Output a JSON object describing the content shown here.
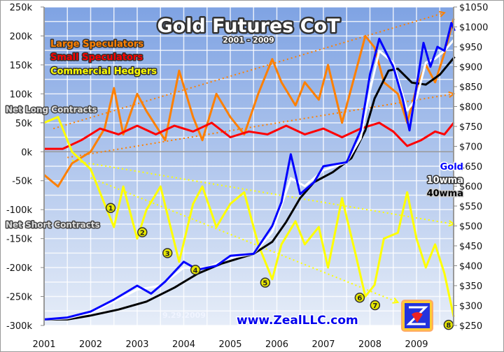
{
  "chart_data": {
    "type": "line",
    "title": "Gold Futures CoT",
    "subtitle": "2001 - 2009",
    "date_label": "9.29.2009",
    "watermark": "www.ZealLLC.com",
    "left_axis": {
      "ylim": [
        -300000,
        250000
      ],
      "ticks": [
        "250k",
        "200k",
        "150k",
        "100k",
        "50k",
        "0k",
        "-50k",
        "-100k",
        "-150k",
        "-200k",
        "-250k",
        "-300k"
      ],
      "tick_values": [
        250000,
        200000,
        150000,
        100000,
        50000,
        0,
        -50000,
        -100000,
        -150000,
        -200000,
        -250000,
        -300000
      ]
    },
    "right_axis": {
      "ylim": [
        250,
        1050
      ],
      "ticks": [
        "$1050",
        "$1000",
        "$950",
        "$900",
        "$850",
        "$800",
        "$750",
        "$700",
        "$650",
        "$600",
        "$550",
        "$500",
        "$450",
        "$400",
        "$350",
        "$300",
        "$250"
      ],
      "tick_values": [
        1050,
        1000,
        950,
        900,
        850,
        800,
        750,
        700,
        650,
        600,
        550,
        500,
        450,
        400,
        350,
        300,
        250
      ]
    },
    "x_axis": {
      "xlim": [
        2001,
        2009.85
      ],
      "ticks": [
        "2001",
        "2002",
        "2003",
        "2004",
        "2005",
        "2006",
        "2007",
        "2008",
        "2009"
      ],
      "tick_values": [
        2001,
        2002,
        2003,
        2004,
        2005,
        2006,
        2007,
        2008,
        2009
      ]
    },
    "grid": true,
    "region_labels": {
      "net_long": "Net Long Contracts",
      "net_short": "Net Short Contracts"
    },
    "legend_left": {
      "placement": "top-left",
      "entries": [
        {
          "name": "Large Speculators",
          "color": "#ff8000"
        },
        {
          "name": "Small Speculators",
          "color": "#ff0000"
        },
        {
          "name": "Commercial Hedgers",
          "color": "#ffff00"
        }
      ]
    },
    "legend_right": {
      "placement": "right",
      "entries": [
        {
          "name": "Gold",
          "color": "#0000ff"
        },
        {
          "name": "10wma",
          "color": "#ffffff"
        },
        {
          "name": "40wma",
          "color": "#000000"
        }
      ]
    },
    "series": [
      {
        "name": "Large Speculators",
        "axis": "left",
        "color": "#ff8000",
        "points": [
          [
            2001,
            -40000
          ],
          [
            2001.3,
            -60000
          ],
          [
            2001.6,
            -20000
          ],
          [
            2002,
            0
          ],
          [
            2002.3,
            40000
          ],
          [
            2002.5,
            110000
          ],
          [
            2002.7,
            30000
          ],
          [
            2003,
            100000
          ],
          [
            2003.2,
            70000
          ],
          [
            2003.6,
            20000
          ],
          [
            2003.9,
            140000
          ],
          [
            2004.2,
            60000
          ],
          [
            2004.4,
            20000
          ],
          [
            2004.7,
            100000
          ],
          [
            2005,
            60000
          ],
          [
            2005.3,
            30000
          ],
          [
            2005.6,
            100000
          ],
          [
            2005.9,
            160000
          ],
          [
            2006.1,
            120000
          ],
          [
            2006.4,
            80000
          ],
          [
            2006.6,
            120000
          ],
          [
            2006.9,
            90000
          ],
          [
            2007.1,
            150000
          ],
          [
            2007.4,
            50000
          ],
          [
            2007.7,
            140000
          ],
          [
            2007.9,
            200000
          ],
          [
            2008.1,
            180000
          ],
          [
            2008.3,
            120000
          ],
          [
            2008.6,
            100000
          ],
          [
            2008.8,
            50000
          ],
          [
            2009,
            110000
          ],
          [
            2009.2,
            150000
          ],
          [
            2009.4,
            120000
          ],
          [
            2009.6,
            170000
          ],
          [
            2009.8,
            230000
          ]
        ]
      },
      {
        "name": "Small Speculators",
        "axis": "left",
        "color": "#ff0000",
        "points": [
          [
            2001,
            5000
          ],
          [
            2001.4,
            5000
          ],
          [
            2001.8,
            20000
          ],
          [
            2002.2,
            40000
          ],
          [
            2002.6,
            30000
          ],
          [
            2003,
            45000
          ],
          [
            2003.4,
            30000
          ],
          [
            2003.8,
            45000
          ],
          [
            2004.2,
            35000
          ],
          [
            2004.6,
            50000
          ],
          [
            2005,
            25000
          ],
          [
            2005.4,
            35000
          ],
          [
            2005.8,
            30000
          ],
          [
            2006.2,
            45000
          ],
          [
            2006.6,
            30000
          ],
          [
            2007,
            40000
          ],
          [
            2007.4,
            25000
          ],
          [
            2007.8,
            40000
          ],
          [
            2008.2,
            50000
          ],
          [
            2008.5,
            35000
          ],
          [
            2008.8,
            10000
          ],
          [
            2009.1,
            20000
          ],
          [
            2009.4,
            35000
          ],
          [
            2009.6,
            30000
          ],
          [
            2009.8,
            50000
          ]
        ]
      },
      {
        "name": "Commercial Hedgers",
        "axis": "left",
        "color": "#ffff00",
        "points": [
          [
            2001,
            50000
          ],
          [
            2001.3,
            60000
          ],
          [
            2001.6,
            0
          ],
          [
            2002,
            -30000
          ],
          [
            2002.3,
            -90000
          ],
          [
            2002.5,
            -130000
          ],
          [
            2002.7,
            -60000
          ],
          [
            2003,
            -150000
          ],
          [
            2003.2,
            -100000
          ],
          [
            2003.5,
            -60000
          ],
          [
            2003.9,
            -190000
          ],
          [
            2004.2,
            -90000
          ],
          [
            2004.4,
            -60000
          ],
          [
            2004.7,
            -130000
          ],
          [
            2005,
            -90000
          ],
          [
            2005.3,
            -70000
          ],
          [
            2005.6,
            -160000
          ],
          [
            2005.9,
            -220000
          ],
          [
            2006.1,
            -160000
          ],
          [
            2006.4,
            -120000
          ],
          [
            2006.6,
            -160000
          ],
          [
            2006.9,
            -130000
          ],
          [
            2007.1,
            -200000
          ],
          [
            2007.4,
            -80000
          ],
          [
            2007.7,
            -180000
          ],
          [
            2007.9,
            -250000
          ],
          [
            2008.1,
            -230000
          ],
          [
            2008.3,
            -150000
          ],
          [
            2008.6,
            -140000
          ],
          [
            2008.8,
            -70000
          ],
          [
            2009,
            -150000
          ],
          [
            2009.2,
            -200000
          ],
          [
            2009.4,
            -160000
          ],
          [
            2009.6,
            -210000
          ],
          [
            2009.8,
            -285000
          ]
        ]
      },
      {
        "name": "Gold",
        "axis": "right",
        "color": "#0000ff",
        "points": [
          [
            2001,
            265
          ],
          [
            2001.5,
            270
          ],
          [
            2002,
            285
          ],
          [
            2002.5,
            315
          ],
          [
            2003,
            350
          ],
          [
            2003.3,
            330
          ],
          [
            2003.6,
            360
          ],
          [
            2004,
            410
          ],
          [
            2004.3,
            390
          ],
          [
            2004.7,
            400
          ],
          [
            2005,
            425
          ],
          [
            2005.5,
            430
          ],
          [
            2005.9,
            500
          ],
          [
            2006.1,
            560
          ],
          [
            2006.3,
            680
          ],
          [
            2006.5,
            580
          ],
          [
            2006.8,
            610
          ],
          [
            2007,
            650
          ],
          [
            2007.5,
            660
          ],
          [
            2007.8,
            740
          ],
          [
            2008,
            880
          ],
          [
            2008.2,
            970
          ],
          [
            2008.5,
            900
          ],
          [
            2008.7,
            820
          ],
          [
            2008.85,
            740
          ],
          [
            2009,
            850
          ],
          [
            2009.15,
            960
          ],
          [
            2009.3,
            900
          ],
          [
            2009.45,
            950
          ],
          [
            2009.6,
            940
          ],
          [
            2009.75,
            1010
          ],
          [
            2009.82,
            990
          ]
        ]
      },
      {
        "name": "10wma",
        "axis": "right",
        "color": "#ffffff",
        "points": [
          [
            2001,
            265
          ],
          [
            2001.5,
            268
          ],
          [
            2002,
            282
          ],
          [
            2002.5,
            310
          ],
          [
            2003,
            340
          ],
          [
            2003.5,
            350
          ],
          [
            2004,
            395
          ],
          [
            2004.5,
            395
          ],
          [
            2005,
            420
          ],
          [
            2005.5,
            430
          ],
          [
            2005.9,
            485
          ],
          [
            2006.3,
            620
          ],
          [
            2006.6,
            600
          ],
          [
            2007,
            640
          ],
          [
            2007.5,
            660
          ],
          [
            2007.8,
            720
          ],
          [
            2008,
            840
          ],
          [
            2008.2,
            940
          ],
          [
            2008.5,
            910
          ],
          [
            2008.8,
            790
          ],
          [
            2009,
            820
          ],
          [
            2009.2,
            910
          ],
          [
            2009.4,
            920
          ],
          [
            2009.6,
            940
          ],
          [
            2009.82,
            970
          ]
        ]
      },
      {
        "name": "40wma",
        "axis": "right",
        "color": "#000000",
        "points": [
          [
            2001,
            265
          ],
          [
            2001.5,
            265
          ],
          [
            2002,
            275
          ],
          [
            2002.6,
            290
          ],
          [
            2003.2,
            310
          ],
          [
            2003.8,
            345
          ],
          [
            2004.3,
            380
          ],
          [
            2004.8,
            405
          ],
          [
            2005.5,
            430
          ],
          [
            2005.9,
            460
          ],
          [
            2006.2,
            510
          ],
          [
            2006.5,
            570
          ],
          [
            2006.8,
            610
          ],
          [
            2007.2,
            635
          ],
          [
            2007.6,
            670
          ],
          [
            2007.9,
            740
          ],
          [
            2008.1,
            820
          ],
          [
            2008.4,
            890
          ],
          [
            2008.6,
            895
          ],
          [
            2008.9,
            860
          ],
          [
            2009.2,
            855
          ],
          [
            2009.5,
            880
          ],
          [
            2009.82,
            925
          ]
        ]
      }
    ],
    "trend_lines": [
      {
        "color": "#ff8000",
        "axis": "left",
        "from": [
          2001.2,
          40000
        ],
        "to": [
          2009.6,
          240000
        ]
      },
      {
        "color": "#ff8000",
        "axis": "left",
        "from": [
          2001.5,
          -10000
        ],
        "to": [
          2009.8,
          100000
        ]
      },
      {
        "color": "#ffff00",
        "axis": "left",
        "from": [
          2001.6,
          -15000
        ],
        "to": [
          2009.8,
          -125000
        ]
      },
      {
        "color": "#ffff00",
        "axis": "left",
        "from": [
          2002,
          -45000
        ],
        "to": [
          2008.6,
          -260000
        ]
      }
    ],
    "markers": [
      {
        "label": "1",
        "x": 2002.43,
        "y": -97000
      },
      {
        "label": "2",
        "x": 2003.11,
        "y": -139000
      },
      {
        "label": "3",
        "x": 2003.65,
        "y": -175000
      },
      {
        "label": "4",
        "x": 2004.25,
        "y": -204000
      },
      {
        "label": "5",
        "x": 2005.75,
        "y": -226000
      },
      {
        "label": "6",
        "x": 2007.78,
        "y": -252000
      },
      {
        "label": "7",
        "x": 2008.11,
        "y": -265000
      },
      {
        "label": "8",
        "x": 2009.69,
        "y": -299000
      }
    ]
  }
}
